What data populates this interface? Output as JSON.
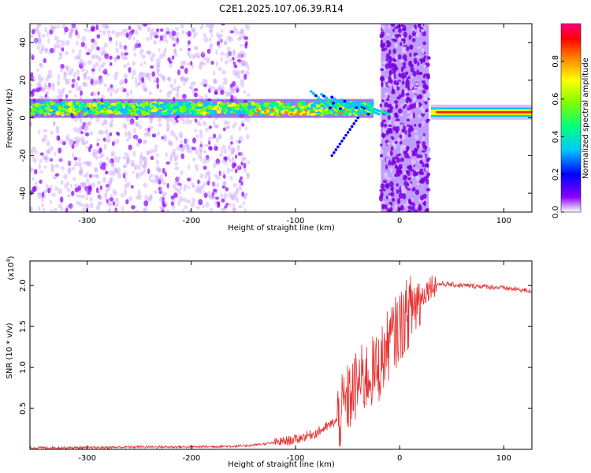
{
  "title": "C2E1.2025.107.06.39.R14",
  "chart_data": [
    {
      "type": "heatmap",
      "title": "C2E1.2025.107.06.39.R14",
      "xlabel": "Height of straight line (km)",
      "ylabel": "Frequency (Hz)",
      "xlim": [
        -355,
        127
      ],
      "ylim": [
        -50,
        50
      ],
      "x_ticks": [
        "-300",
        "-200",
        "-100",
        "0",
        "100"
      ],
      "y_ticks": [
        "-40",
        "-20",
        "0",
        "20",
        "40"
      ],
      "colorbar": {
        "label": "Normalized spectral amplitude",
        "range": [
          0,
          1
        ],
        "ticks": [
          "0.0",
          "0.2",
          "0.4",
          "0.6",
          "0.8"
        ],
        "colors": [
          "#ffffff",
          "#8a00ff",
          "#0000ff",
          "#00c8ff",
          "#00ff80",
          "#80ff00",
          "#ffff00",
          "#ff8000",
          "#ff0000",
          "#ff0080"
        ]
      },
      "features": [
        {
          "name": "main-band",
          "x_range": [
            -355,
            -25
          ],
          "y_center": 5,
          "y_halfwidth": 3
        },
        {
          "name": "strong-band",
          "x_range": [
            30,
            127
          ],
          "y_center": 3,
          "y_halfwidth": 1.5
        },
        {
          "name": "noise-block",
          "x_range": [
            -18,
            28
          ],
          "y_range": [
            -50,
            50
          ]
        }
      ]
    },
    {
      "type": "line",
      "xlabel": "Height of straight line (km)",
      "ylabel": "SNR (10 * v/v)",
      "y_multiplier": "(x10^4)",
      "xlim": [
        -355,
        127
      ],
      "ylim": [
        0,
        2.3
      ],
      "x_ticks": [
        "-300",
        "-200",
        "-100",
        "0",
        "100"
      ],
      "y_ticks": [
        "0.5",
        "1.0",
        "1.5",
        "2.0"
      ],
      "color": "#e83030",
      "series": [
        {
          "x": [
            -355,
            -300,
            -250,
            -200,
            -150,
            -120,
            -100,
            -80,
            -60,
            -50,
            -40,
            -30,
            -20,
            -10,
            0,
            10,
            20,
            30,
            40,
            60,
            80,
            100,
            127
          ],
          "y": [
            0.02,
            0.02,
            0.03,
            0.03,
            0.04,
            0.08,
            0.12,
            0.2,
            0.35,
            0.6,
            0.8,
            0.9,
            1.0,
            1.3,
            1.5,
            1.7,
            1.85,
            2.0,
            2.02,
            2.0,
            1.99,
            1.97,
            1.93
          ]
        }
      ]
    }
  ]
}
